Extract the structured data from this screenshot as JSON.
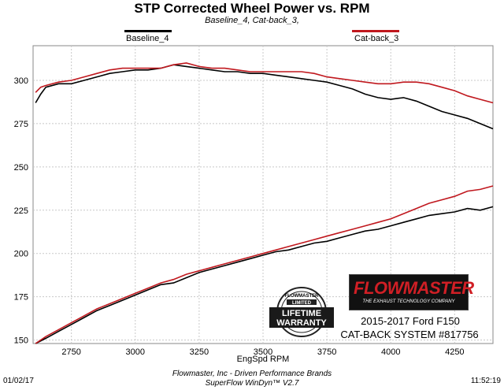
{
  "chart_data": {
    "type": "line",
    "title": "STP Corrected Wheel Power vs. RPM",
    "subtitle": "Baseline_4, Cat-back_3,",
    "xlabel": "EngSpd RPM",
    "ylabel": "",
    "xlim": [
      2600,
      4400
    ],
    "ylim": [
      148,
      320
    ],
    "xticks": [
      2750,
      3000,
      3250,
      3500,
      3750,
      4000,
      4250
    ],
    "yticks": [
      150,
      175,
      200,
      225,
      250,
      275,
      300
    ],
    "grid": true,
    "legend_placement": "top",
    "series": [
      {
        "name": "Baseline_4",
        "color": "#000000",
        "group": "power",
        "x": [
          2610,
          2630,
          2650,
          2700,
          2750,
          2800,
          2850,
          2900,
          2950,
          3000,
          3050,
          3100,
          3150,
          3200,
          3250,
          3300,
          3350,
          3400,
          3450,
          3500,
          3550,
          3600,
          3650,
          3700,
          3750,
          3800,
          3850,
          3900,
          3950,
          4000,
          4050,
          4100,
          4150,
          4200,
          4250,
          4300,
          4350,
          4400
        ],
        "values": [
          287,
          292,
          296,
          298,
          298,
          300,
          302,
          304,
          305,
          306,
          306,
          307,
          309,
          308,
          307,
          306,
          305,
          305,
          304,
          304,
          303,
          302,
          301,
          300,
          299,
          297,
          295,
          292,
          290,
          289,
          290,
          288,
          285,
          282,
          280,
          278,
          275,
          272
        ]
      },
      {
        "name": "Cat-back_3",
        "color": "#c0181e",
        "group": "power",
        "x": [
          2610,
          2630,
          2650,
          2700,
          2750,
          2800,
          2850,
          2900,
          2950,
          3000,
          3050,
          3100,
          3150,
          3200,
          3250,
          3300,
          3350,
          3400,
          3450,
          3500,
          3550,
          3600,
          3650,
          3700,
          3750,
          3800,
          3850,
          3900,
          3950,
          4000,
          4050,
          4100,
          4150,
          4200,
          4250,
          4300,
          4350,
          4400
        ],
        "values": [
          293,
          296,
          297,
          299,
          300,
          302,
          304,
          306,
          307,
          307,
          307,
          307,
          309,
          310,
          308,
          307,
          307,
          306,
          305,
          305,
          305,
          305,
          305,
          304,
          302,
          301,
          300,
          299,
          298,
          298,
          299,
          299,
          298,
          296,
          294,
          291,
          289,
          287
        ]
      },
      {
        "name": "Baseline_4",
        "color": "#000000",
        "group": "torque",
        "x": [
          2610,
          2650,
          2700,
          2750,
          2800,
          2850,
          2900,
          2950,
          3000,
          3050,
          3100,
          3150,
          3200,
          3250,
          3300,
          3350,
          3400,
          3450,
          3500,
          3550,
          3600,
          3650,
          3700,
          3750,
          3800,
          3850,
          3900,
          3950,
          4000,
          4050,
          4100,
          4150,
          4200,
          4250,
          4300,
          4350,
          4400
        ],
        "values": [
          148,
          151,
          155,
          159,
          163,
          167,
          170,
          173,
          176,
          179,
          182,
          183,
          186,
          189,
          191,
          193,
          195,
          197,
          199,
          201,
          202,
          204,
          206,
          207,
          209,
          211,
          213,
          214,
          216,
          218,
          220,
          222,
          223,
          224,
          226,
          225,
          227
        ]
      },
      {
        "name": "Cat-back_3",
        "color": "#c0181e",
        "group": "torque",
        "x": [
          2610,
          2650,
          2700,
          2750,
          2800,
          2850,
          2900,
          2950,
          3000,
          3050,
          3100,
          3150,
          3200,
          3250,
          3300,
          3350,
          3400,
          3450,
          3500,
          3550,
          3600,
          3650,
          3700,
          3750,
          3800,
          3850,
          3900,
          3950,
          4000,
          4050,
          4100,
          4150,
          4200,
          4250,
          4300,
          4350,
          4400
        ],
        "values": [
          148,
          152,
          156,
          160,
          164,
          168,
          171,
          174,
          177,
          180,
          183,
          185,
          188,
          190,
          192,
          194,
          196,
          198,
          200,
          202,
          204,
          206,
          208,
          210,
          212,
          214,
          216,
          218,
          220,
          223,
          226,
          229,
          231,
          233,
          236,
          237,
          239
        ]
      }
    ]
  },
  "legend": [
    {
      "label": "Baseline_4",
      "color": "#000000"
    },
    {
      "label": "Cat-back_3",
      "color": "#c0181e"
    }
  ],
  "footer": {
    "date": "01/02/17",
    "time": "11:52:19",
    "company": "Flowmaster, Inc - Driven Performance Brands",
    "software": "SuperFlow WinDyn™ V2.7"
  },
  "badge": {
    "top_text": "FLOWMASTER",
    "ribbon_text": "LIMITED",
    "line1": "LIFETIME",
    "line2": "WARRANTY"
  },
  "logo": {
    "brand": "FLOWMASTER",
    "tagline": "THE EXHAUST TECHNOLOGY COMPANY"
  },
  "product": {
    "vehicle": "2015-2017 Ford F150",
    "system": "CAT-BACK SYSTEM #817756"
  }
}
